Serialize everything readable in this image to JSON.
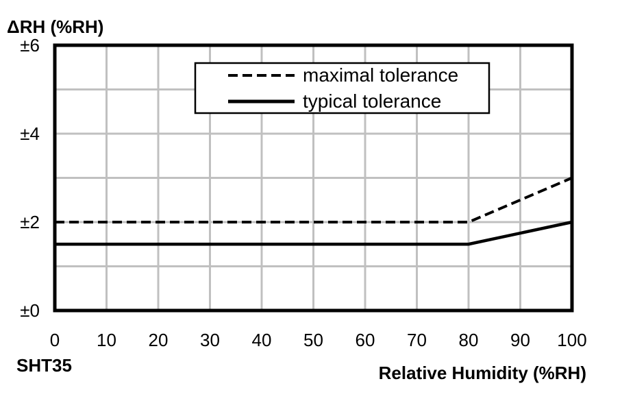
{
  "chart_data": {
    "type": "line",
    "title": "",
    "ylabel": "ΔRH (%RH)",
    "xlabel": "Relative Humidity (%RH)",
    "corner_label": "SHT35",
    "xlim": [
      0,
      100
    ],
    "ylim": [
      0,
      6
    ],
    "x_ticks": [
      0,
      10,
      20,
      30,
      40,
      50,
      60,
      70,
      80,
      90,
      100
    ],
    "x_tick_labels": [
      "0",
      "10",
      "20",
      "30",
      "40",
      "50",
      "60",
      "70",
      "80",
      "90",
      "100"
    ],
    "y_ticks": [
      0,
      2,
      4,
      6
    ],
    "y_tick_labels": [
      "±0",
      "±2",
      "±4",
      "±6"
    ],
    "grid": true,
    "legend_position": "top-center",
    "series": [
      {
        "name": "maximal tolerance",
        "style": "dashed",
        "color": "#000000",
        "x": [
          0,
          80,
          100
        ],
        "y": [
          2,
          2,
          3
        ]
      },
      {
        "name": "typical tolerance",
        "style": "solid",
        "color": "#000000",
        "x": [
          0,
          80,
          100
        ],
        "y": [
          1.5,
          1.5,
          2
        ]
      }
    ]
  }
}
